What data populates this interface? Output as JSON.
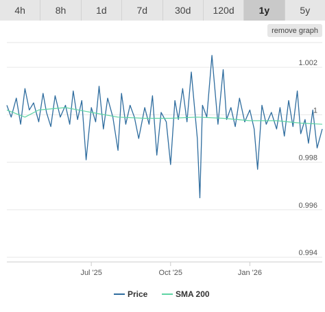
{
  "range_tabs": [
    {
      "label": "4h",
      "active": false
    },
    {
      "label": "8h",
      "active": false
    },
    {
      "label": "1d",
      "active": false
    },
    {
      "label": "7d",
      "active": false
    },
    {
      "label": "30d",
      "active": false
    },
    {
      "label": "120d",
      "active": false
    },
    {
      "label": "1y",
      "active": true
    },
    {
      "label": "5y",
      "active": false
    }
  ],
  "remove_graph_label": "remove graph",
  "colors": {
    "price": "#2e6c9e",
    "sma": "#5dd4a3",
    "grid": "#e6e6e6"
  },
  "chart_data": {
    "type": "line",
    "x_ticks": [
      "Jul '25",
      "Oct '25",
      "Jan '26"
    ],
    "y_ticks": [
      "1.002",
      "1",
      "0.998",
      "0.996",
      "0.994"
    ],
    "ylim": [
      0.9938,
      1.0031
    ],
    "xlim": [
      "2025-03-25",
      "2026-03-26"
    ],
    "grid": true,
    "legend_position": "bottom-center",
    "series": [
      {
        "name": "Price",
        "x": [
          "2025-03-25",
          "2025-03-30",
          "2025-04-05",
          "2025-04-10",
          "2025-04-15",
          "2025-04-20",
          "2025-04-25",
          "2025-05-01",
          "2025-05-06",
          "2025-05-10",
          "2025-05-15",
          "2025-05-20",
          "2025-05-26",
          "2025-06-01",
          "2025-06-06",
          "2025-06-10",
          "2025-06-15",
          "2025-06-20",
          "2025-06-25",
          "2025-07-01",
          "2025-07-06",
          "2025-07-10",
          "2025-07-15",
          "2025-07-20",
          "2025-07-26",
          "2025-08-01",
          "2025-08-05",
          "2025-08-10",
          "2025-08-15",
          "2025-08-20",
          "2025-08-25",
          "2025-09-01",
          "2025-09-06",
          "2025-09-10",
          "2025-09-15",
          "2025-09-20",
          "2025-09-26",
          "2025-10-01",
          "2025-10-06",
          "2025-10-10",
          "2025-10-15",
          "2025-10-20",
          "2025-10-25",
          "2025-11-01",
          "2025-11-04",
          "2025-11-07",
          "2025-11-12",
          "2025-11-18",
          "2025-11-25",
          "2025-12-01",
          "2025-12-05",
          "2025-12-10",
          "2025-12-15",
          "2025-12-20",
          "2025-12-26",
          "2026-01-01",
          "2026-01-06",
          "2026-01-10",
          "2026-01-15",
          "2026-01-20",
          "2026-01-26",
          "2026-02-01",
          "2026-02-05",
          "2026-02-10",
          "2026-02-15",
          "2026-02-20",
          "2026-02-25",
          "2026-03-01",
          "2026-03-06",
          "2026-03-10",
          "2026-03-15",
          "2026-03-20",
          "2026-03-26"
        ],
        "values": [
          1.0004,
          0.9999,
          1.0007,
          0.9996,
          1.0011,
          1.0002,
          1.0005,
          0.9997,
          1.0009,
          1.0001,
          0.9995,
          1.0008,
          0.9999,
          1.0004,
          0.9996,
          1.001,
          0.9998,
          1.0006,
          0.9981,
          1.0003,
          0.9997,
          1.0012,
          0.9994,
          1.0007,
          0.9999,
          0.9985,
          1.0009,
          0.9996,
          1.0004,
          0.9999,
          0.999,
          1.0003,
          0.9996,
          1.0008,
          0.9983,
          1.0001,
          0.9997,
          0.9979,
          1.0006,
          0.9998,
          1.0011,
          0.9997,
          1.0018,
          0.999,
          0.9965,
          1.0004,
          0.9999,
          1.0025,
          0.9996,
          1.0019,
          0.9998,
          1.0003,
          0.9995,
          1.0007,
          0.9997,
          1.0002,
          0.9994,
          0.9977,
          1.0004,
          0.9996,
          1.0001,
          0.9994,
          1.0003,
          0.9991,
          1.0006,
          0.9995,
          1.001,
          0.9992,
          0.9998,
          0.9988,
          1.0002,
          0.9986,
          0.9994
        ]
      },
      {
        "name": "SMA 200",
        "x": [
          "2025-03-25",
          "2025-04-15",
          "2025-05-01",
          "2025-06-01",
          "2025-07-01",
          "2025-08-01",
          "2025-09-01",
          "2025-10-01",
          "2025-11-01",
          "2025-12-01",
          "2026-01-01",
          "2026-02-01",
          "2026-03-01",
          "2026-03-26"
        ],
        "values": [
          1.0002,
          0.9999,
          1.0002,
          1.0003,
          1.0001,
          0.9999,
          0.99985,
          0.99985,
          0.9999,
          0.99985,
          0.99975,
          0.99975,
          0.99965,
          0.9996
        ]
      }
    ]
  }
}
